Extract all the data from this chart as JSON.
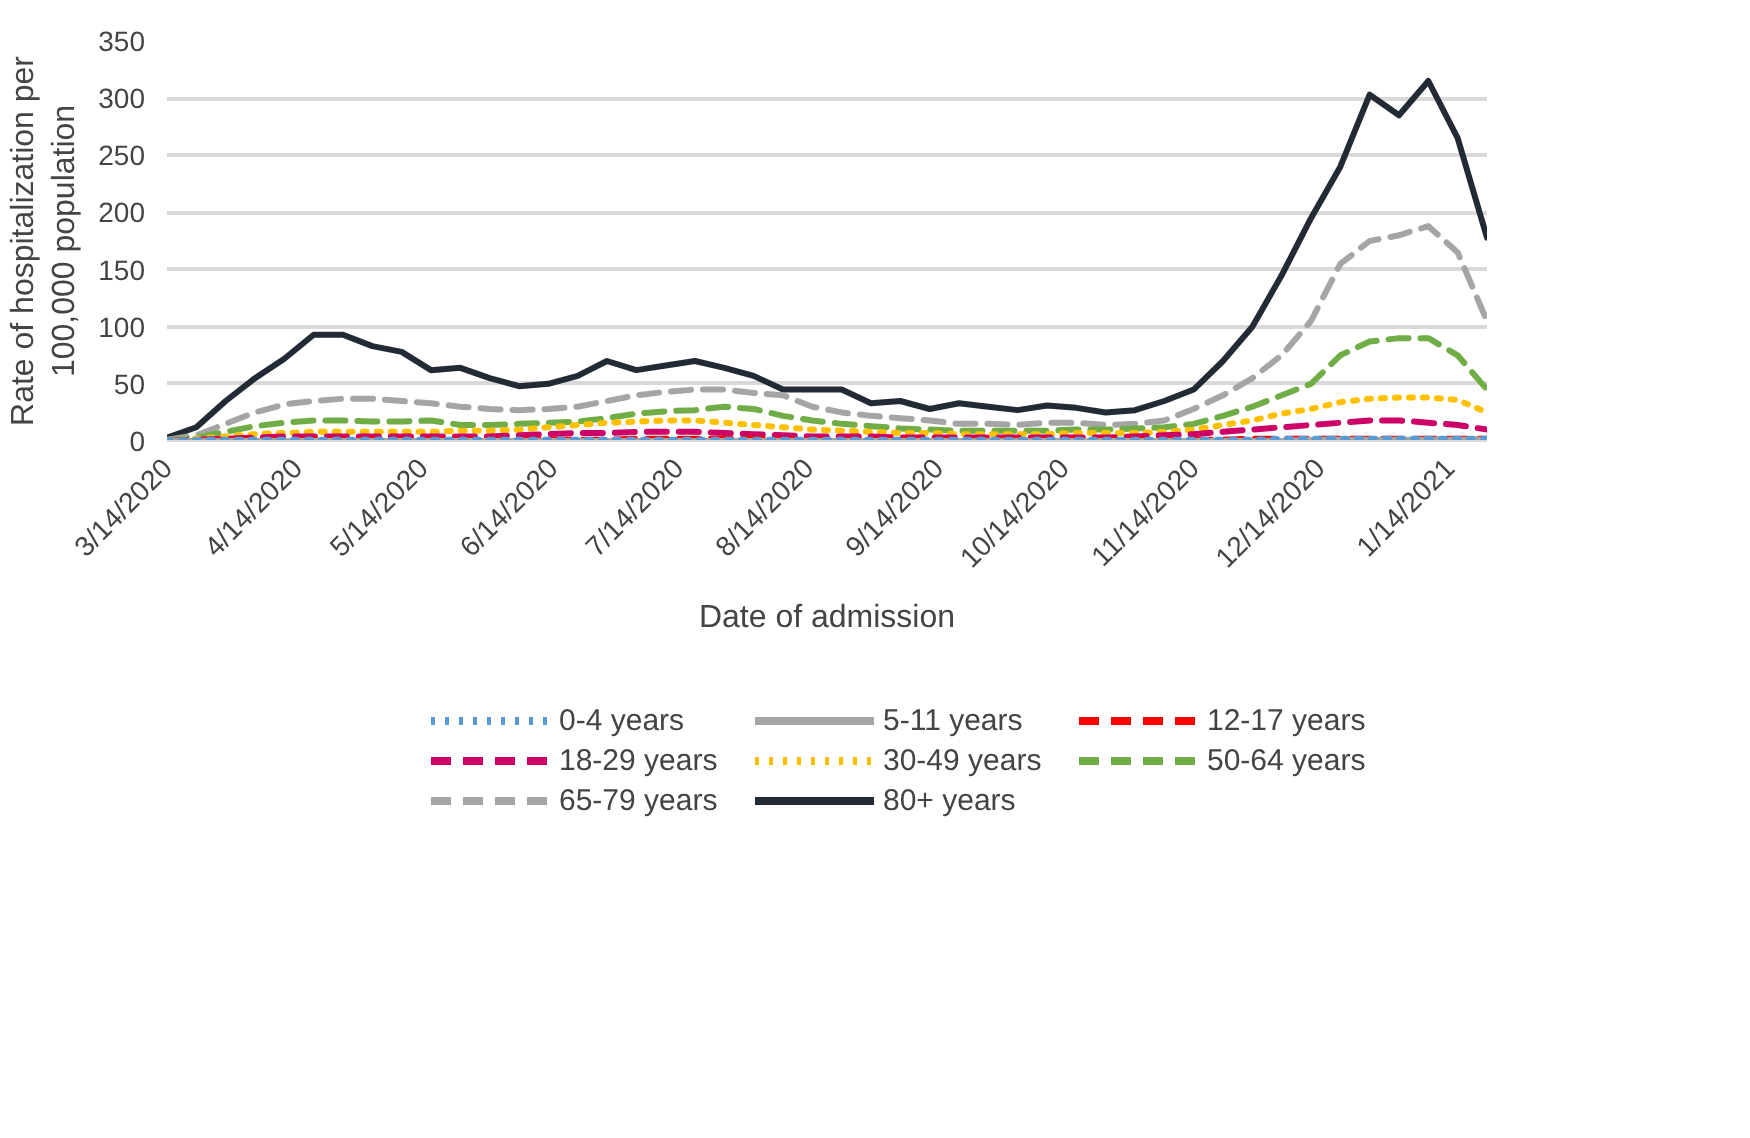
{
  "chart_data": {
    "type": "line",
    "xlabel": "Date of admission",
    "ylabel": "Rate of hospitalization per 100,000 population",
    "x": [
      "2020-03-14",
      "2020-03-21",
      "2020-03-28",
      "2020-04-04",
      "2020-04-11",
      "2020-04-18",
      "2020-04-25",
      "2020-05-02",
      "2020-05-09",
      "2020-05-16",
      "2020-05-23",
      "2020-05-30",
      "2020-06-06",
      "2020-06-13",
      "2020-06-20",
      "2020-06-27",
      "2020-07-04",
      "2020-07-11",
      "2020-07-18",
      "2020-07-25",
      "2020-08-01",
      "2020-08-08",
      "2020-08-15",
      "2020-08-22",
      "2020-08-29",
      "2020-09-05",
      "2020-09-12",
      "2020-09-19",
      "2020-09-26",
      "2020-10-03",
      "2020-10-10",
      "2020-10-17",
      "2020-10-24",
      "2020-10-31",
      "2020-11-07",
      "2020-11-14",
      "2020-11-21",
      "2020-11-28",
      "2020-12-05",
      "2020-12-12",
      "2020-12-19",
      "2020-12-26",
      "2021-01-02",
      "2021-01-09",
      "2021-01-16",
      "2021-01-23"
    ],
    "xlim": [
      "2020-03-14",
      "2021-01-23"
    ],
    "xticks": [
      {
        "value": "2020-03-14",
        "label": "3/14/2020"
      },
      {
        "value": "2020-04-14",
        "label": "4/14/2020"
      },
      {
        "value": "2020-05-14",
        "label": "5/14/2020"
      },
      {
        "value": "2020-06-14",
        "label": "6/14/2020"
      },
      {
        "value": "2020-07-14",
        "label": "7/14/2020"
      },
      {
        "value": "2020-08-14",
        "label": "8/14/2020"
      },
      {
        "value": "2020-09-14",
        "label": "9/14/2020"
      },
      {
        "value": "2020-10-14",
        "label": "10/14/2020"
      },
      {
        "value": "2020-11-14",
        "label": "11/14/2020"
      },
      {
        "value": "2020-12-14",
        "label": "12/14/2020"
      },
      {
        "value": "2021-01-14",
        "label": "1/14/2021"
      }
    ],
    "ylim": [
      0,
      350
    ],
    "yticks": [
      0,
      50,
      100,
      150,
      200,
      250,
      300,
      350
    ],
    "grid": "y",
    "legend": "bottom",
    "series": [
      {
        "name": "0-4 years",
        "color": "#5b9bd5",
        "line_style": "dotted",
        "values": [
          0,
          1,
          1,
          1,
          1,
          1,
          1,
          1,
          1,
          1,
          1,
          1,
          1,
          1,
          1,
          1,
          1,
          1,
          1,
          1,
          1,
          1,
          1,
          1,
          1,
          1,
          1,
          1,
          1,
          1,
          1,
          1,
          1,
          1,
          1,
          1,
          1,
          1,
          2,
          2,
          2,
          2,
          2,
          2,
          2,
          2
        ]
      },
      {
        "name": "5-11 years",
        "color": "#a5a5a5",
        "line_style": "solid",
        "values": [
          0,
          0,
          0,
          0,
          0,
          0,
          0,
          0,
          0,
          0,
          0,
          0,
          0,
          0,
          0,
          0,
          0,
          0,
          0,
          0,
          0,
          0,
          0,
          0,
          0,
          0,
          0,
          0,
          0,
          0,
          0,
          0,
          0,
          0,
          0,
          0,
          0,
          0,
          0,
          1,
          1,
          1,
          1,
          1,
          1,
          1
        ]
      },
      {
        "name": "12-17 years",
        "color": "#ff0000",
        "line_style": "dashed",
        "values": [
          0,
          0,
          1,
          1,
          1,
          1,
          1,
          1,
          1,
          1,
          1,
          1,
          1,
          1,
          1,
          1,
          2,
          2,
          2,
          2,
          2,
          1,
          1,
          1,
          1,
          1,
          1,
          1,
          1,
          1,
          1,
          1,
          1,
          1,
          1,
          1,
          1,
          2,
          2,
          2,
          2,
          2,
          2,
          2,
          2,
          2
        ]
      },
      {
        "name": "18-29 years",
        "color": "#cc0066",
        "line_style": "dashed",
        "values": [
          0,
          1,
          2,
          3,
          4,
          4,
          4,
          4,
          4,
          4,
          4,
          4,
          5,
          6,
          7,
          7,
          8,
          8,
          8,
          7,
          6,
          5,
          4,
          4,
          4,
          3,
          3,
          3,
          3,
          3,
          3,
          3,
          3,
          4,
          5,
          6,
          8,
          10,
          12,
          14,
          16,
          18,
          18,
          16,
          14,
          10
        ]
      },
      {
        "name": "30-49 years",
        "color": "#ffc000",
        "line_style": "dotted",
        "values": [
          0,
          2,
          4,
          6,
          7,
          8,
          8,
          8,
          8,
          8,
          9,
          9,
          10,
          12,
          14,
          16,
          17,
          18,
          18,
          16,
          14,
          12,
          10,
          9,
          8,
          7,
          7,
          6,
          6,
          6,
          6,
          7,
          7,
          7,
          8,
          10,
          14,
          18,
          24,
          28,
          34,
          37,
          38,
          38,
          36,
          25
        ]
      },
      {
        "name": "50-64 years",
        "color": "#70ad47",
        "line_style": "dashed",
        "values": [
          0,
          3,
          8,
          13,
          16,
          18,
          18,
          17,
          17,
          18,
          14,
          14,
          15,
          16,
          17,
          20,
          24,
          26,
          27,
          30,
          28,
          22,
          18,
          15,
          13,
          11,
          10,
          9,
          9,
          9,
          9,
          10,
          10,
          11,
          12,
          15,
          22,
          30,
          40,
          50,
          75,
          87,
          90,
          90,
          75,
          45
        ]
      },
      {
        "name": "65-79 years",
        "color": "#a5a5a5",
        "line_style": "dashed",
        "values": [
          1,
          5,
          15,
          25,
          32,
          35,
          37,
          37,
          35,
          33,
          30,
          28,
          27,
          28,
          30,
          35,
          40,
          43,
          45,
          45,
          42,
          40,
          30,
          25,
          22,
          20,
          18,
          15,
          15,
          14,
          16,
          16,
          14,
          15,
          18,
          28,
          40,
          55,
          75,
          105,
          155,
          175,
          180,
          188,
          165,
          105
        ]
      },
      {
        "name": "80+ years",
        "color": "#222a35",
        "line_style": "solid",
        "values": [
          3,
          12,
          35,
          55,
          72,
          93,
          93,
          83,
          78,
          62,
          64,
          55,
          48,
          50,
          57,
          70,
          62,
          66,
          70,
          64,
          57,
          45,
          45,
          45,
          33,
          35,
          28,
          33,
          30,
          27,
          31,
          29,
          25,
          27,
          35,
          45,
          70,
          100,
          145,
          195,
          240,
          303,
          285,
          315,
          265,
          178
        ]
      }
    ]
  }
}
